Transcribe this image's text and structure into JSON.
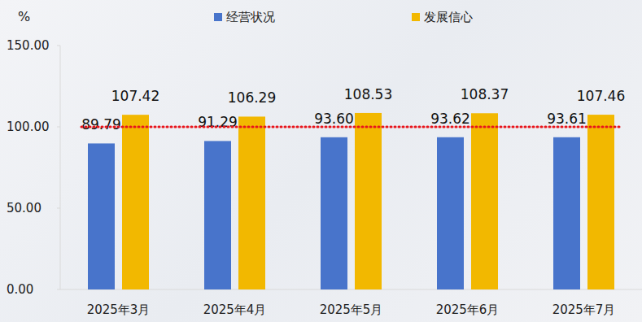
{
  "chart_data": {
    "type": "bar",
    "ylabel": "%",
    "categories": [
      "2025年3月",
      "2025年4月",
      "2025年5月",
      "2025年6月",
      "2025年7月"
    ],
    "series": [
      {
        "name": "经营状况",
        "color": "#4874cb",
        "values": [
          89.79,
          91.29,
          93.6,
          93.62,
          93.61
        ],
        "value_labels": [
          "89.79",
          "91.29",
          "93.60",
          "93.62",
          "93.61"
        ]
      },
      {
        "name": "发展信心",
        "color": "#f2b800",
        "values": [
          107.42,
          106.29,
          108.53,
          108.37,
          107.46
        ],
        "value_labels": [
          "107.42",
          "106.29",
          "108.53",
          "108.37",
          "107.46"
        ]
      }
    ],
    "ylim": [
      0,
      150
    ],
    "yticks": [
      {
        "value": 0,
        "label": "0.00"
      },
      {
        "value": 50,
        "label": "50.00"
      },
      {
        "value": 100,
        "label": "100.00"
      },
      {
        "value": 150,
        "label": "150.00"
      }
    ],
    "reference_line": 100,
    "grid": false,
    "legend": "top",
    "data_labels": true
  }
}
